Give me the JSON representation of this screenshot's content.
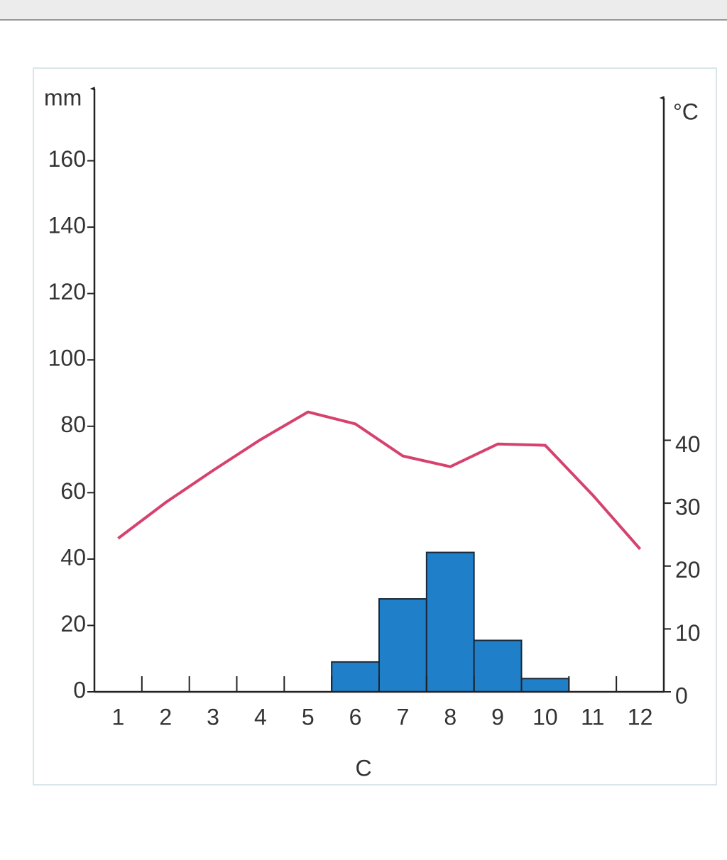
{
  "chart_data": {
    "type": "combo",
    "y_label": "mm",
    "y2_label": "°C",
    "x_label": "C",
    "categories": [
      1,
      2,
      3,
      4,
      5,
      6,
      7,
      8,
      9,
      10,
      11,
      12
    ],
    "series": [
      {
        "type": "bar",
        "color": "#1f7fc8",
        "values": [
          0,
          0,
          0,
          0,
          0,
          9,
          28,
          42,
          15.5,
          4,
          0,
          0
        ]
      },
      {
        "type": "line",
        "axis": "y2",
        "color": "#d6426e",
        "values": [
          24.4,
          30.1,
          35.2,
          40.1,
          44.5,
          42.6,
          37.5,
          35.8,
          39.4,
          39.2,
          31.3,
          22.7
        ]
      }
    ],
    "ylim": [
      0,
      180
    ],
    "yticks": [
      0,
      20,
      40,
      60,
      80,
      100,
      120,
      140,
      160
    ],
    "y2lim": [
      0,
      95
    ],
    "y2ticks": [
      0,
      10,
      20,
      30,
      40
    ]
  }
}
